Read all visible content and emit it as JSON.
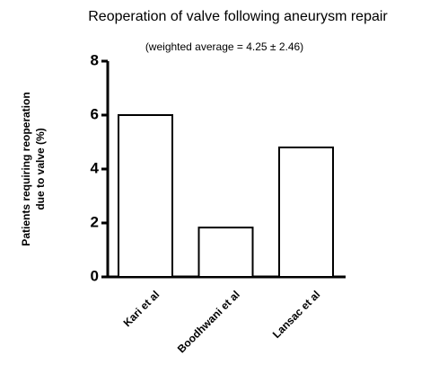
{
  "chart_data": {
    "type": "bar",
    "title": "Reoperation of valve following aneurysm repair",
    "subtitle": "(weighted average = 4.25 ± 2.46)",
    "ylabel": [
      "Patients requiring reoperation",
      "due to valve (%)"
    ],
    "categories": [
      "Kari et al",
      "Boodhwani et al",
      "Lansac et al"
    ],
    "values": [
      6.0,
      1.83,
      4.8
    ],
    "color": "#ffffff",
    "edgecolor": "#000000",
    "ylim": [
      0,
      8
    ],
    "yticks": [
      0,
      2,
      4,
      6,
      8
    ],
    "grid": false
  }
}
